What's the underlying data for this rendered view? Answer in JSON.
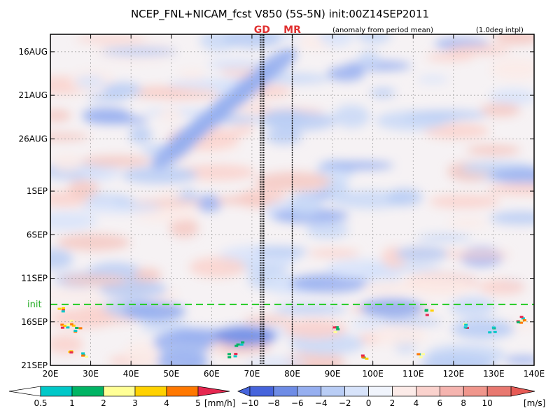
{
  "chart_data": {
    "type": "heatmap",
    "title": "NCEP_FNL+NICAM_fcst V850 (5S-5N) init:00Z14SEP2011",
    "subtitle_left": "(anomaly from period mean)",
    "subtitle_right": "(1.0deg intpl)",
    "x_ticks": [
      "20E",
      "30E",
      "40E",
      "50E",
      "60E",
      "70E",
      "80E",
      "90E",
      "100E",
      "110E",
      "120E",
      "130E",
      "140E"
    ],
    "x_range": [
      "20E",
      "140E"
    ],
    "y_ticks": [
      "16AUG",
      "21AUG",
      "26AUG",
      "1SEP",
      "6SEP",
      "11SEP",
      "16SEP",
      "21SEP"
    ],
    "y_range": [
      "14AUG",
      "21SEP"
    ],
    "init_date": "14SEP",
    "init_label": "init",
    "markers": [
      {
        "label": "GD",
        "lon": 72.5,
        "color": "#e03030"
      },
      {
        "label": "MR",
        "lon": 80,
        "color": "#e03030"
      }
    ],
    "grid": true,
    "colorbars": [
      {
        "name": "precip",
        "unit": "[mm/h]",
        "tick_labels": [
          "0.5",
          "1",
          "2",
          "3",
          "4",
          "5"
        ],
        "colors": [
          "#00c8c8",
          "#00b464",
          "#ffff96",
          "#ffd200",
          "#ff7800",
          "#e62850"
        ]
      },
      {
        "name": "V850",
        "unit": "[m/s]",
        "tick_labels": [
          "−10",
          "−8",
          "−6",
          "−4",
          "−2",
          "0",
          "2",
          "4",
          "6",
          "8",
          "10"
        ],
        "colors": [
          "#4664dc",
          "#6e8ce6",
          "#96aff0",
          "#b9cdf5",
          "#d7e3fa",
          "#f0f4fc",
          "#fcebe8",
          "#fad2cd",
          "#f5b4af",
          "#f0968c",
          "#e87870",
          "#e65a55"
        ]
      }
    ]
  }
}
